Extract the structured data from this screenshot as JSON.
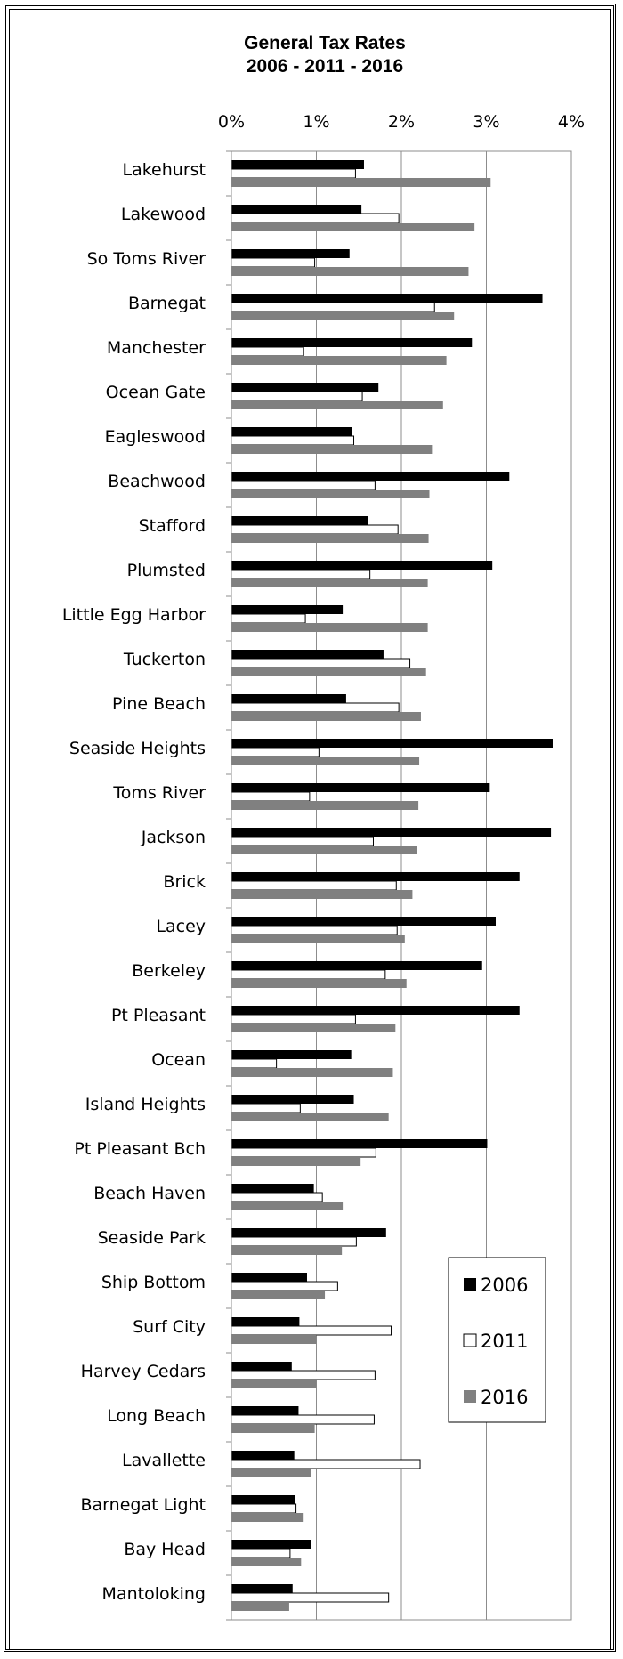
{
  "chart_data": {
    "type": "bar",
    "orientation": "horizontal",
    "title": "General Tax Rates",
    "subtitle": "2006 - 2011 - 2016",
    "x_ticks": [
      "0%",
      "1%",
      "2%",
      "3%",
      "4%"
    ],
    "xlim": [
      0,
      4
    ],
    "grid": true,
    "legend_position": "lower-right",
    "categories": [
      "Lakehurst",
      "Lakewood",
      "So Toms River",
      "Barnegat",
      "Manchester",
      "Ocean Gate",
      "Eagleswood",
      "Beachwood",
      "Stafford",
      "Plumsted",
      "Little Egg Harbor",
      "Tuckerton",
      "Pine Beach",
      "Seaside Heights",
      "Toms River",
      "Jackson",
      "Brick",
      "Lacey",
      "Berkeley",
      "Pt Pleasant",
      "Ocean",
      "Island Heights",
      "Pt Pleasant Bch",
      "Beach Haven",
      "Seaside Park",
      "Ship Bottom",
      "Surf City",
      "Harvey Cedars",
      "Long Beach",
      "Lavallette",
      "Barnegat Light",
      "Bay Head",
      "Mantoloking"
    ],
    "series": [
      {
        "name": "2006",
        "color": "#000000",
        "values": [
          1.56,
          1.53,
          1.39,
          3.66,
          2.83,
          1.73,
          1.42,
          3.27,
          1.61,
          3.07,
          1.31,
          1.79,
          1.35,
          3.78,
          3.04,
          3.76,
          3.39,
          3.11,
          2.95,
          3.39,
          1.41,
          1.44,
          3.01,
          0.97,
          1.82,
          0.89,
          0.8,
          0.71,
          0.79,
          0.74,
          0.75,
          0.94,
          0.72
        ]
      },
      {
        "name": "2011",
        "color": "#ffffff",
        "values": [
          1.46,
          1.97,
          0.98,
          2.39,
          0.85,
          1.54,
          1.44,
          1.69,
          1.96,
          1.63,
          0.87,
          2.1,
          1.97,
          1.03,
          0.92,
          1.67,
          1.94,
          1.95,
          1.81,
          1.46,
          0.53,
          0.81,
          1.7,
          1.07,
          1.47,
          1.25,
          1.88,
          1.69,
          1.68,
          2.22,
          0.76,
          0.69,
          1.85
        ]
      },
      {
        "name": "2016",
        "color": "#808080",
        "values": [
          3.05,
          2.86,
          2.79,
          2.62,
          2.53,
          2.49,
          2.36,
          2.33,
          2.32,
          2.31,
          2.31,
          2.29,
          2.23,
          2.21,
          2.2,
          2.18,
          2.13,
          2.04,
          2.06,
          1.93,
          1.9,
          1.85,
          1.52,
          1.31,
          1.3,
          1.1,
          1.0,
          1.0,
          0.98,
          0.94,
          0.85,
          0.82,
          0.68
        ]
      }
    ]
  }
}
